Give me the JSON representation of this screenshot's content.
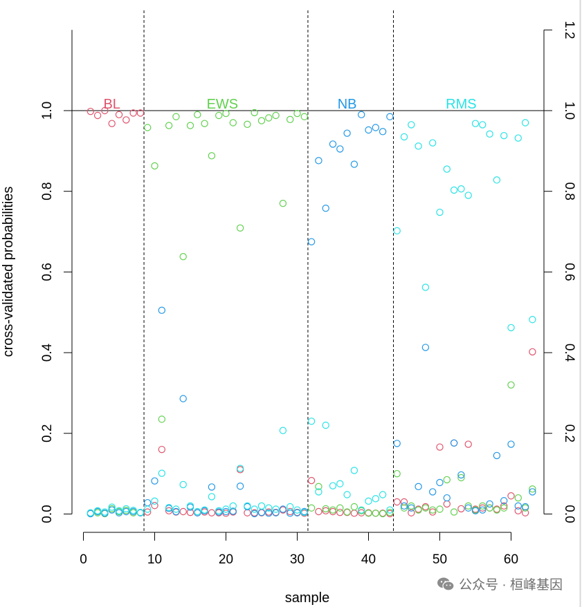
{
  "chart_data": {
    "type": "scatter",
    "xlabel": "sample",
    "ylabel": "cross-validated probabilities",
    "xlim": [
      0,
      63
    ],
    "ylim": [
      0,
      1.2
    ],
    "x_ticks": [
      0,
      10,
      20,
      30,
      40,
      50,
      60
    ],
    "y_ticks_left": [
      0.0,
      0.2,
      0.4,
      0.6,
      0.8,
      1.0
    ],
    "y_ticks_right": [
      0.0,
      0.2,
      0.4,
      0.6,
      0.8,
      1.0,
      1.2
    ],
    "hline": 1.0,
    "group_separators": [
      8.5,
      31.5,
      43.5
    ],
    "groups": [
      {
        "label": "BL",
        "x_center": 4,
        "color": "#DF536B"
      },
      {
        "label": "EWS",
        "x_center": 19.5,
        "color": "#61D04F"
      },
      {
        "label": "NB",
        "x_center": 37,
        "color": "#2297E6"
      },
      {
        "label": "RMS",
        "x_center": 53,
        "color": "#28E2E5"
      }
    ],
    "series": [
      {
        "name": "BL",
        "color": "#DF536B",
        "y": [
          0.998,
          0.988,
          1.0,
          0.968,
          0.99,
          0.977,
          0.994,
          0.994,
          0.005,
          0.021,
          0.16,
          0.008,
          0.005,
          0.006,
          0.004,
          0.003,
          0.005,
          0.003,
          0.003,
          0.002,
          0.005,
          0.11,
          0.003,
          0.003,
          0.003,
          0.005,
          0.004,
          0.01,
          0.006,
          0.004,
          0.002,
          0.083,
          0.006,
          0.008,
          0.006,
          0.004,
          0.004,
          0.002,
          0.003,
          0.003,
          0.002,
          0.002,
          0.001,
          0.03,
          0.03,
          0.003,
          0.012,
          0.018,
          0.005,
          0.166,
          0.025,
          0.176,
          0.013,
          0.173,
          0.012,
          0.015,
          0.015,
          0.012,
          0.02,
          0.045,
          0.008,
          0.003,
          0.402
        ]
      },
      {
        "name": "EWS",
        "color": "#61D04F",
        "y": [
          0.001,
          0.003,
          0.001,
          0.013,
          0.006,
          0.009,
          0.003,
          0.003,
          0.958,
          0.863,
          0.235,
          0.963,
          0.985,
          0.638,
          0.963,
          0.99,
          0.968,
          0.888,
          0.988,
          0.993,
          0.97,
          0.709,
          0.966,
          0.995,
          0.975,
          0.982,
          0.988,
          0.77,
          0.978,
          0.993,
          0.985,
          0.015,
          0.068,
          0.013,
          0.01,
          0.015,
          0.005,
          0.018,
          0.008,
          0.002,
          0.002,
          0.001,
          0.004,
          0.1,
          0.015,
          0.02,
          0.01,
          0.015,
          0.01,
          0.012,
          0.085,
          0.005,
          0.09,
          0.02,
          0.01,
          0.02,
          0.015,
          0.01,
          0.015,
          0.32,
          0.04,
          0.015,
          0.062
        ]
      },
      {
        "name": "NB",
        "color": "#2297E6",
        "y": [
          0.001,
          0.006,
          0.002,
          0.01,
          0.003,
          0.006,
          0.006,
          0.003,
          0.028,
          0.082,
          0.505,
          0.014,
          0.006,
          0.286,
          0.017,
          0.003,
          0.008,
          0.067,
          0.005,
          0.006,
          0.007,
          0.069,
          0.018,
          0.001,
          0.004,
          0.002,
          0.003,
          0.012,
          0.002,
          0.003,
          0.006,
          0.675,
          0.876,
          0.758,
          0.917,
          0.905,
          0.944,
          0.867,
          0.99,
          0.952,
          0.958,
          0.948,
          0.985,
          0.175,
          0.02,
          0.015,
          0.068,
          0.413,
          0.055,
          0.078,
          0.04,
          0.176,
          0.097,
          0.015,
          0.008,
          0.01,
          0.025,
          0.145,
          0.033,
          0.173,
          0.02,
          0.018,
          0.055
        ]
      },
      {
        "name": "RMS",
        "color": "#28E2E5",
        "y": [
          0.003,
          0.008,
          0.005,
          0.017,
          0.008,
          0.013,
          0.009,
          0.004,
          0.012,
          0.032,
          0.101,
          0.016,
          0.012,
          0.073,
          0.02,
          0.006,
          0.01,
          0.043,
          0.008,
          0.012,
          0.02,
          0.113,
          0.02,
          0.012,
          0.02,
          0.015,
          0.012,
          0.207,
          0.018,
          0.01,
          0.004,
          0.23,
          0.055,
          0.22,
          0.07,
          0.075,
          0.048,
          0.108,
          0.01,
          0.032,
          0.038,
          0.048,
          0.01,
          0.702,
          0.935,
          0.965,
          0.912,
          0.562,
          0.92,
          0.748,
          0.855,
          0.803,
          0.806,
          0.79,
          0.968,
          0.965,
          0.942,
          0.828,
          0.938,
          0.462,
          0.932,
          0.97,
          0.482
        ]
      }
    ]
  },
  "watermark": {
    "text": "公众号 · 桓峰基因"
  }
}
